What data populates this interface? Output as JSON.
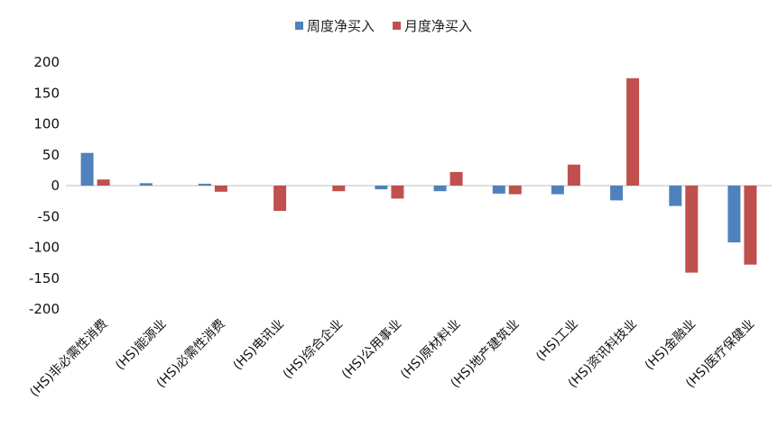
{
  "chart_data": {
    "type": "bar",
    "title": "",
    "xlabel": "",
    "ylabel": "",
    "ylim": [
      -200,
      200
    ],
    "yticks": [
      200,
      150,
      100,
      50,
      0,
      -50,
      -100,
      -150,
      -200
    ],
    "grid": false,
    "legend_position": "top-center",
    "categories": [
      "(HS)非必需性消费",
      "(HS)能源业",
      "(HS)必需性消费",
      "(HS)电讯业",
      "(HS)综合企业",
      "(HS)公用事业",
      "(HS)原材料业",
      "(HS)地产建筑业",
      "(HS)工业",
      "(HS)资讯科技业",
      "(HS)金融业",
      "(HS)医疗保健业"
    ],
    "series": [
      {
        "name": "周度净买入",
        "color": "#4F81BD",
        "values": [
          53,
          4,
          3,
          0,
          0,
          -6,
          -9,
          -13,
          -14,
          -24,
          -33,
          -92
        ]
      },
      {
        "name": "月度净买入",
        "color": "#C0504D",
        "values": [
          10,
          0,
          -10,
          -41,
          -9,
          -21,
          22,
          -14,
          34,
          174,
          -141,
          -128
        ]
      }
    ]
  }
}
